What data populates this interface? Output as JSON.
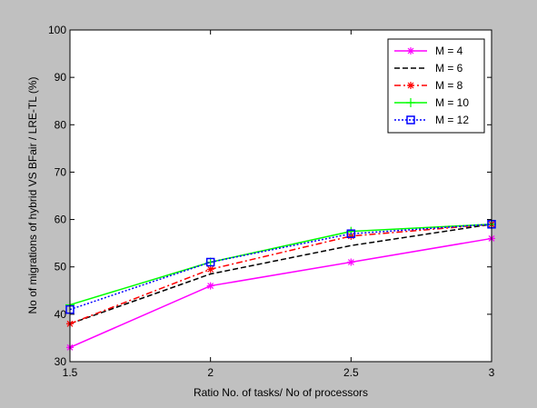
{
  "chart_data": {
    "type": "line",
    "title": "",
    "xlabel": "Ratio  No. of tasks/ No of processors",
    "ylabel": "No  of migrations of  hybrid VS BFair / LRE-TL (%)",
    "xlim": [
      1.5,
      3
    ],
    "ylim": [
      30,
      100
    ],
    "xticks": [
      1.5,
      2,
      2.5,
      3
    ],
    "xtick_labels": [
      "1.5",
      "2",
      "2.5",
      "3"
    ],
    "yticks": [
      30,
      40,
      50,
      60,
      70,
      80,
      90,
      100
    ],
    "ytick_labels": [
      "30",
      "40",
      "50",
      "60",
      "70",
      "80",
      "90",
      "100"
    ],
    "grid": false,
    "legend_position": "top-right",
    "x": [
      1.5,
      2,
      2.5,
      3
    ],
    "series": [
      {
        "name": "M = 4",
        "values": [
          33,
          46,
          51,
          56
        ],
        "color": "#ff00ff",
        "dash": "solid",
        "marker": "star"
      },
      {
        "name": "M = 6",
        "values": [
          38,
          48.5,
          54.5,
          59
        ],
        "color": "#000000",
        "dash": "dashed",
        "marker": "none"
      },
      {
        "name": "M = 8",
        "values": [
          38,
          49.5,
          56.5,
          59
        ],
        "color": "#ff0000",
        "dash": "dashdot",
        "marker": "star"
      },
      {
        "name": "M = 10",
        "values": [
          42,
          51,
          57.5,
          59
        ],
        "color": "#00ff00",
        "dash": "solid",
        "marker": "plus"
      },
      {
        "name": "M = 12",
        "values": [
          41,
          51,
          57,
          59
        ],
        "color": "#0000ff",
        "dash": "dotted",
        "marker": "square"
      }
    ]
  }
}
